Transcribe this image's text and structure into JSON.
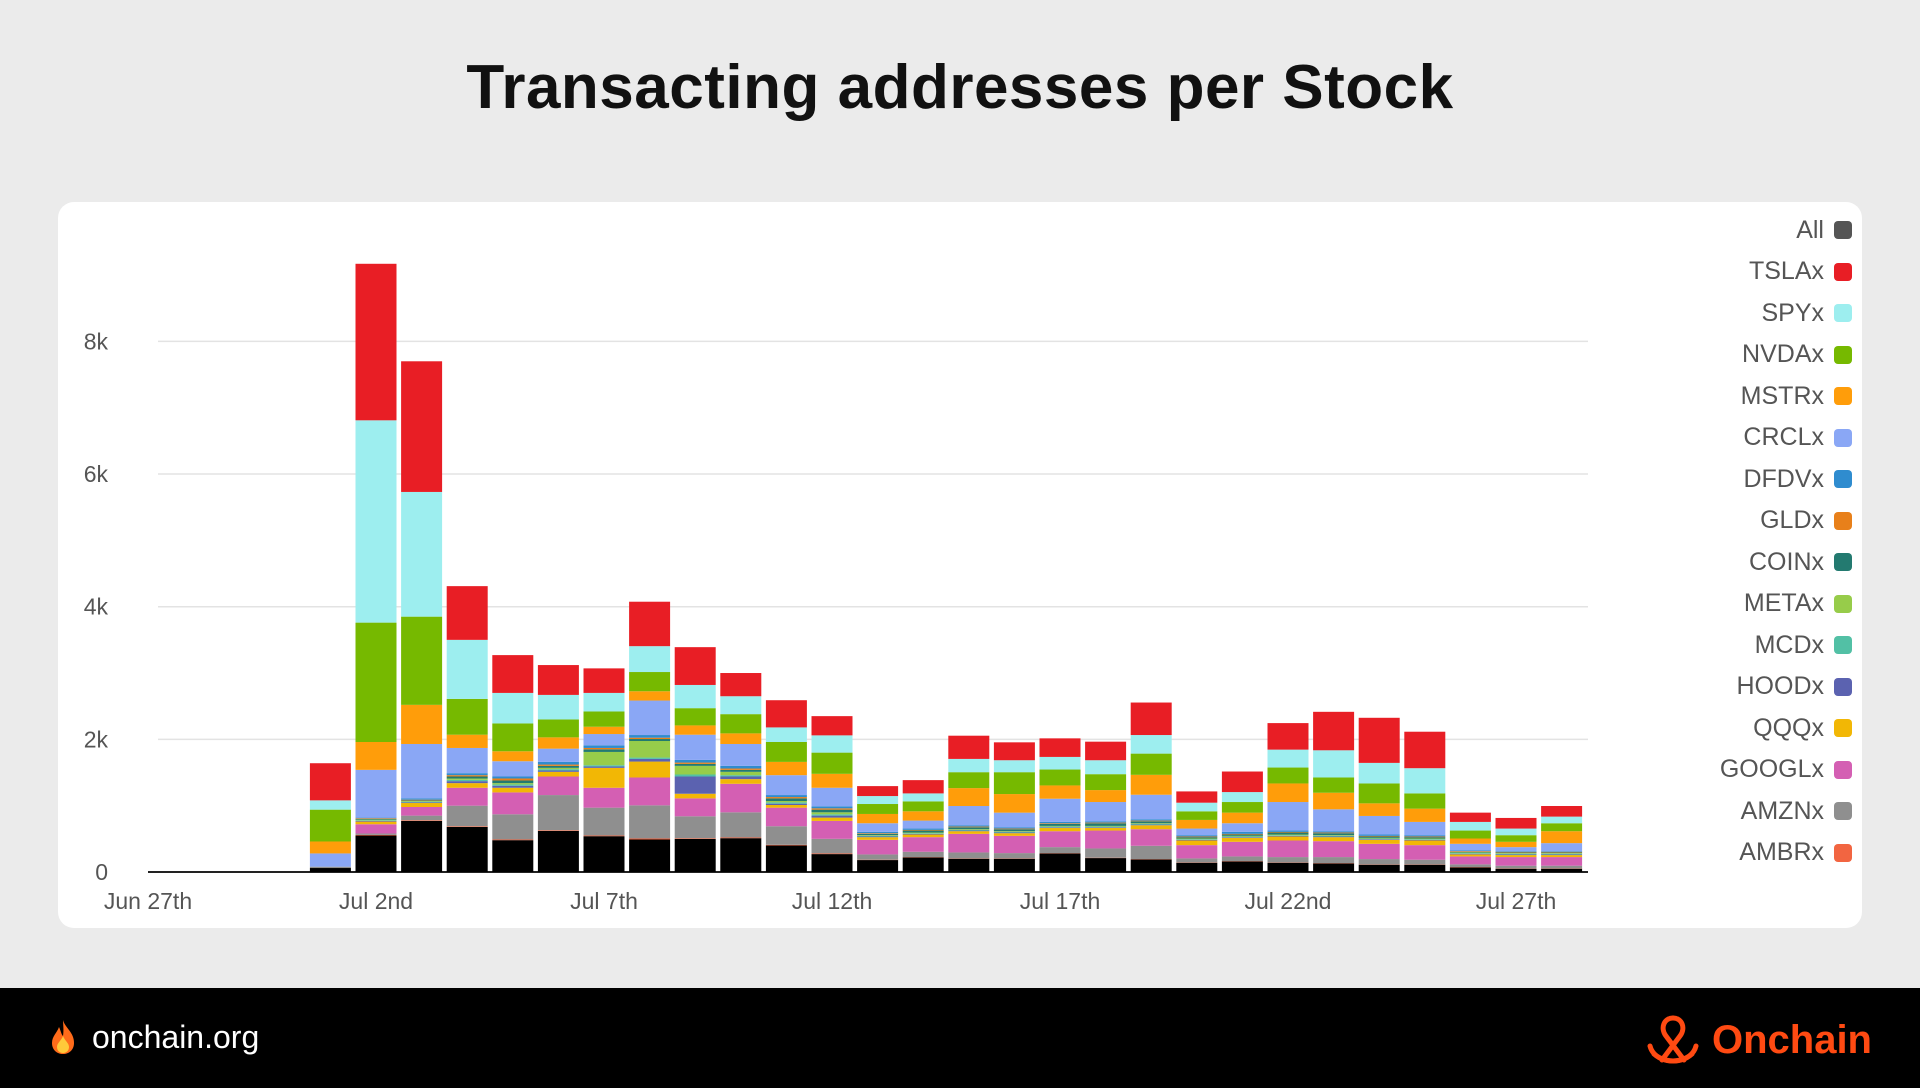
{
  "title": "Transacting addresses per Stock",
  "footer": {
    "site": "onchain.org",
    "brand": "Onchain",
    "fire_icon": "fire-icon",
    "brand_icon": "onchain-logo-icon",
    "brand_color": "#ff4a12"
  },
  "chart_data": {
    "type": "bar",
    "stacked": true,
    "title": "Transacting addresses per Stock",
    "xlabel": "",
    "ylabel": "",
    "ylim": [
      0,
      9800
    ],
    "y_ticks": [
      0,
      2000,
      4000,
      6000,
      8000
    ],
    "y_tick_labels": [
      "0",
      "2k",
      "4k",
      "6k",
      "8k"
    ],
    "grid": true,
    "legend_position": "right",
    "x_tick_labels": [
      "Jun 27th",
      "Jul 2nd",
      "Jul 7th",
      "Jul 12th",
      "Jul 17th",
      "Jul 22nd",
      "Jul 27th"
    ],
    "categories": [
      "Jun 27",
      "Jun 28",
      "Jun 29",
      "Jun 30",
      "Jul 1",
      "Jul 2",
      "Jul 3",
      "Jul 4",
      "Jul 5",
      "Jul 6",
      "Jul 7",
      "Jul 8",
      "Jul 9",
      "Jul 10",
      "Jul 11",
      "Jul 12",
      "Jul 13",
      "Jul 14",
      "Jul 15",
      "Jul 16",
      "Jul 17",
      "Jul 18",
      "Jul 19",
      "Jul 20",
      "Jul 21",
      "Jul 22",
      "Jul 23",
      "Jul 24",
      "Jul 25",
      "Jul 26",
      "Jul 27",
      "Jul 28"
    ],
    "series": [
      {
        "name": "All",
        "color": "#000000",
        "values": [
          0,
          0,
          0,
          0,
          60,
          550,
          770,
          680,
          480,
          620,
          540,
          490,
          500,
          510,
          400,
          270,
          180,
          220,
          200,
          200,
          280,
          210,
          190,
          140,
          160,
          140,
          130,
          110,
          110,
          70,
          50,
          50
        ]
      },
      {
        "name": "AMBRx",
        "color": "#f26541",
        "values": [
          0,
          0,
          0,
          0,
          0,
          10,
          10,
          10,
          10,
          10,
          10,
          15,
          10,
          10,
          10,
          10,
          5,
          5,
          5,
          5,
          5,
          5,
          5,
          5,
          5,
          5,
          5,
          5,
          5,
          5,
          5,
          5
        ]
      },
      {
        "name": "AMZNx",
        "color": "#8f8f8f",
        "values": [
          0,
          0,
          0,
          0,
          20,
          20,
          70,
          310,
          380,
          530,
          420,
          500,
          330,
          380,
          280,
          220,
          80,
          80,
          90,
          80,
          90,
          140,
          200,
          60,
          70,
          80,
          90,
          80,
          70,
          40,
          40,
          40
        ]
      },
      {
        "name": "GOOGLx",
        "color": "#d45fb3",
        "values": [
          0,
          0,
          0,
          0,
          0,
          140,
          130,
          270,
          330,
          280,
          300,
          420,
          270,
          430,
          280,
          270,
          220,
          220,
          280,
          260,
          240,
          270,
          250,
          200,
          220,
          250,
          240,
          230,
          220,
          120,
          130,
          130
        ]
      },
      {
        "name": "QQQx",
        "color": "#f2b705",
        "values": [
          0,
          0,
          0,
          0,
          0,
          40,
          60,
          70,
          70,
          70,
          300,
          240,
          70,
          70,
          40,
          50,
          40,
          40,
          40,
          40,
          50,
          40,
          60,
          70,
          60,
          60,
          60,
          60,
          70,
          30,
          30,
          30
        ]
      },
      {
        "name": "HOODx",
        "color": "#5b62b0",
        "values": [
          0,
          0,
          0,
          0,
          0,
          10,
          10,
          30,
          30,
          20,
          20,
          40,
          260,
          40,
          20,
          30,
          10,
          10,
          10,
          10,
          10,
          10,
          10,
          10,
          10,
          10,
          10,
          10,
          10,
          10,
          10,
          10
        ]
      },
      {
        "name": "MCDx",
        "color": "#52c0a5",
        "values": [
          0,
          0,
          0,
          0,
          0,
          10,
          10,
          20,
          20,
          20,
          20,
          20,
          30,
          20,
          20,
          20,
          10,
          10,
          10,
          10,
          10,
          10,
          10,
          10,
          10,
          10,
          10,
          10,
          10,
          10,
          10,
          10
        ]
      },
      {
        "name": "METAx",
        "color": "#97cc4a",
        "values": [
          0,
          0,
          0,
          0,
          0,
          10,
          10,
          20,
          20,
          20,
          200,
          250,
          130,
          50,
          20,
          30,
          10,
          10,
          10,
          10,
          10,
          10,
          10,
          10,
          10,
          10,
          10,
          10,
          10,
          10,
          10,
          10
        ]
      },
      {
        "name": "COINx",
        "color": "#237a70",
        "values": [
          0,
          0,
          0,
          0,
          0,
          10,
          10,
          30,
          40,
          30,
          40,
          30,
          30,
          30,
          40,
          40,
          20,
          30,
          30,
          30,
          30,
          40,
          30,
          20,
          20,
          30,
          30,
          20,
          20,
          10,
          10,
          10
        ]
      },
      {
        "name": "GLDx",
        "color": "#e8801a",
        "values": [
          0,
          0,
          0,
          0,
          0,
          10,
          10,
          20,
          30,
          20,
          20,
          20,
          20,
          20,
          20,
          20,
          10,
          10,
          10,
          10,
          10,
          10,
          10,
          10,
          10,
          10,
          10,
          10,
          10,
          10,
          10,
          10
        ]
      },
      {
        "name": "DFDVx",
        "color": "#2f8ccf",
        "values": [
          0,
          0,
          0,
          0,
          0,
          10,
          20,
          30,
          30,
          40,
          40,
          40,
          40,
          40,
          30,
          30,
          20,
          20,
          20,
          20,
          20,
          20,
          20,
          20,
          30,
          20,
          20,
          20,
          20,
          10,
          10,
          10
        ]
      },
      {
        "name": "CRCLx",
        "color": "#8aa7f5",
        "values": [
          0,
          0,
          0,
          0,
          200,
          720,
          820,
          380,
          230,
          200,
          170,
          520,
          380,
          330,
          300,
          280,
          130,
          120,
          290,
          220,
          350,
          290,
          370,
          100,
          130,
          430,
          330,
          280,
          200,
          100,
          60,
          120
        ]
      },
      {
        "name": "MSTRx",
        "color": "#ff9d0a",
        "values": [
          0,
          0,
          0,
          0,
          180,
          420,
          590,
          200,
          150,
          170,
          110,
          140,
          140,
          160,
          200,
          210,
          140,
          140,
          270,
          280,
          200,
          180,
          300,
          130,
          160,
          280,
          250,
          190,
          200,
          80,
          80,
          180
        ]
      },
      {
        "name": "NVDAx",
        "color": "#76b900",
        "values": [
          0,
          0,
          0,
          0,
          480,
          1800,
          1330,
          540,
          420,
          270,
          230,
          290,
          260,
          290,
          300,
          320,
          150,
          150,
          240,
          330,
          240,
          240,
          320,
          130,
          160,
          240,
          230,
          300,
          230,
          120,
          100,
          120
        ]
      },
      {
        "name": "SPYx",
        "color": "#9deeef",
        "values": [
          0,
          0,
          0,
          0,
          140,
          3050,
          1880,
          890,
          460,
          370,
          280,
          390,
          350,
          270,
          220,
          260,
          120,
          120,
          200,
          180,
          190,
          210,
          280,
          130,
          150,
          270,
          410,
          310,
          380,
          130,
          100,
          100
        ]
      },
      {
        "name": "TSLAx",
        "color": "#e81e25",
        "values": [
          0,
          0,
          0,
          0,
          560,
          2360,
          1970,
          810,
          570,
          450,
          370,
          670,
          570,
          350,
          410,
          290,
          150,
          200,
          350,
          270,
          280,
          280,
          490,
          170,
          310,
          400,
          580,
          680,
          550,
          140,
          160,
          160
        ]
      }
    ]
  }
}
